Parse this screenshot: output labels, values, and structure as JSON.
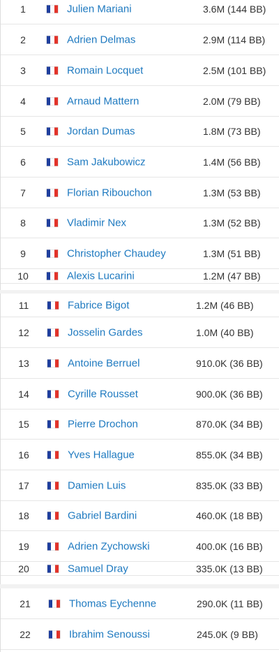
{
  "flag_icon": "france-flag-icon",
  "colors": {
    "player_link": "#1f7ac0",
    "text": "#333333",
    "divider": "#e6e6e6",
    "flag_blue": "#1f3f9e",
    "flag_red": "#e2332a"
  },
  "players": [
    {
      "rank": "1",
      "name": "Julien Mariani",
      "stack": "3.6M (144 BB)"
    },
    {
      "rank": "2",
      "name": "Adrien Delmas",
      "stack": "2.9M (114 BB)"
    },
    {
      "rank": "3",
      "name": "Romain Locquet",
      "stack": "2.5M (101 BB)"
    },
    {
      "rank": "4",
      "name": "Arnaud Mattern",
      "stack": "2.0M (79 BB)"
    },
    {
      "rank": "5",
      "name": "Jordan Dumas",
      "stack": "1.8M (73 BB)"
    },
    {
      "rank": "6",
      "name": "Sam Jakubowicz",
      "stack": "1.4M (56 BB)"
    },
    {
      "rank": "7",
      "name": "Florian Ribouchon",
      "stack": "1.3M (53 BB)"
    },
    {
      "rank": "8",
      "name": "Vladimir Nex",
      "stack": "1.3M (52 BB)"
    },
    {
      "rank": "9",
      "name": "Christopher Chaudey",
      "stack": "1.3M (51 BB)"
    },
    {
      "rank": "10",
      "name": "Alexis Lucarini",
      "stack": "1.2M (47 BB)"
    },
    {
      "rank": "11",
      "name": "Fabrice Bigot",
      "stack": "1.2M (46 BB)"
    },
    {
      "rank": "12",
      "name": "Josselin Gardes",
      "stack": "1.0M (40 BB)"
    },
    {
      "rank": "13",
      "name": "Antoine Berruel",
      "stack": "910.0K (36 BB)"
    },
    {
      "rank": "14",
      "name": "Cyrille Rousset",
      "stack": "900.0K (36 BB)"
    },
    {
      "rank": "15",
      "name": "Pierre Drochon",
      "stack": "870.0K (34 BB)"
    },
    {
      "rank": "16",
      "name": "Yves Hallague",
      "stack": "855.0K (34 BB)"
    },
    {
      "rank": "17",
      "name": "Damien Luis",
      "stack": "835.0K (33 BB)"
    },
    {
      "rank": "18",
      "name": "Gabriel Bardini",
      "stack": "460.0K (18 BB)"
    },
    {
      "rank": "19",
      "name": "Adrien Zychowski",
      "stack": "400.0K (16 BB)"
    },
    {
      "rank": "20",
      "name": "Samuel Dray",
      "stack": "335.0K (13 BB)"
    },
    {
      "rank": "21",
      "name": "Thomas Eychenne",
      "stack": "290.0K (11 BB)"
    },
    {
      "rank": "22",
      "name": "Ibrahim Senoussi",
      "stack": "245.0K (9 BB)"
    }
  ]
}
